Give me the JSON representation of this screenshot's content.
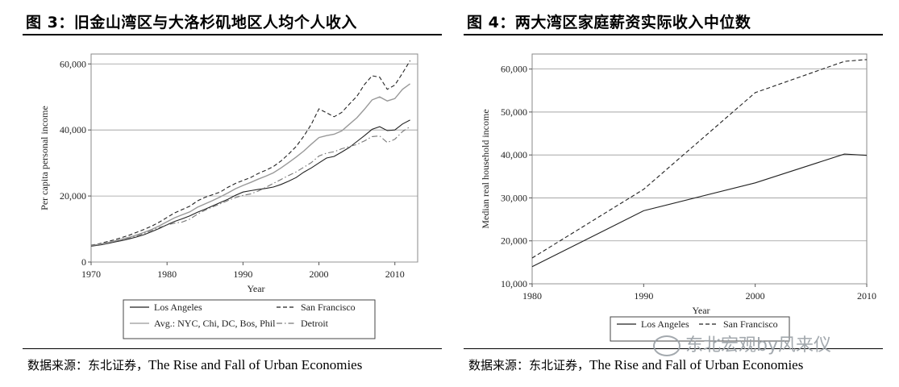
{
  "figures": [
    {
      "title": "图 3：旧金山湾区与大洛杉矶地区人均个人收入",
      "source_prefix": "数据来源：东北证券，",
      "source_en": "The Rise and Fall of Urban Economies"
    },
    {
      "title": "图 4：两大湾区家庭薪资实际收入中位数",
      "source_prefix": "数据来源：东北证券，",
      "source_en": "The Rise and Fall of Urban Economies"
    }
  ],
  "watermark": "东北宏观by风来仪",
  "chart_data": [
    {
      "type": "line",
      "title": "旧金山湾区与大洛杉矶地区人均个人收入",
      "xlabel": "Year",
      "ylabel": "Per capita personal income",
      "xlim": [
        1970,
        2013
      ],
      "ylim": [
        0,
        63000
      ],
      "xticks": [
        1970,
        1980,
        1990,
        2000,
        2010
      ],
      "yticks": [
        0,
        20000,
        40000,
        60000
      ],
      "ytick_labels": [
        "0",
        "20,000",
        "40,000",
        "60,000"
      ],
      "grid": "horizontal",
      "legend_position": "bottom",
      "x": [
        1970,
        1971,
        1972,
        1973,
        1974,
        1975,
        1976,
        1977,
        1978,
        1979,
        1980,
        1981,
        1982,
        1983,
        1984,
        1985,
        1986,
        1987,
        1988,
        1989,
        1990,
        1991,
        1992,
        1993,
        1994,
        1995,
        1996,
        1997,
        1998,
        1999,
        2000,
        2001,
        2002,
        2003,
        2004,
        2005,
        2006,
        2007,
        2008,
        2009,
        2010,
        2011,
        2012
      ],
      "series": [
        {
          "name": "Los Angeles",
          "style": "solid",
          "color": "#222222",
          "values": [
            4800,
            5100,
            5500,
            6000,
            6500,
            7000,
            7600,
            8300,
            9200,
            10200,
            11300,
            12300,
            13100,
            14000,
            15100,
            16000,
            17000,
            18000,
            19000,
            20200,
            21200,
            21600,
            22000,
            22300,
            22700,
            23500,
            24500,
            25600,
            27200,
            28500,
            30000,
            31500,
            32000,
            33300,
            34700,
            36500,
            38300,
            40200,
            41000,
            39800,
            40000,
            41800,
            43000
          ]
        },
        {
          "name": "San Francisco",
          "style": "dashed",
          "color": "#222222",
          "values": [
            5100,
            5500,
            6100,
            6700,
            7400,
            8100,
            9000,
            9900,
            10900,
            12100,
            13500,
            14900,
            15900,
            16900,
            18500,
            19600,
            20400,
            21200,
            22600,
            23800,
            24700,
            25600,
            26800,
            27800,
            28900,
            30600,
            32700,
            35000,
            38100,
            41700,
            46400,
            45200,
            44000,
            45300,
            47800,
            50200,
            53800,
            56400,
            56000,
            52300,
            53600,
            57200,
            61000
          ]
        },
        {
          "name": "Avg.: NYC, Chi, DC, Bos, Phil",
          "style": "solid",
          "color": "#999999",
          "values": [
            5000,
            5300,
            5800,
            6300,
            6900,
            7500,
            8200,
            9000,
            9900,
            11000,
            12200,
            13400,
            14300,
            15200,
            16600,
            17600,
            18600,
            19700,
            20900,
            22200,
            23200,
            24100,
            25100,
            26000,
            27000,
            28500,
            30100,
            31800,
            33600,
            35700,
            37700,
            38300,
            38700,
            39700,
            41700,
            43700,
            46300,
            49100,
            50000,
            48800,
            49500,
            52300,
            54000
          ]
        },
        {
          "name": "Detroit",
          "style": "dashdot",
          "color": "#777777",
          "values": [
            5000,
            5200,
            5600,
            6200,
            6700,
            7200,
            7900,
            8700,
            9600,
            10500,
            11200,
            11800,
            12100,
            13000,
            14500,
            15700,
            16700,
            17600,
            18600,
            19500,
            20200,
            20600,
            21500,
            22600,
            23800,
            25000,
            26200,
            27300,
            28700,
            30100,
            32100,
            33000,
            33400,
            34300,
            35000,
            35600,
            36700,
            38000,
            38200,
            36200,
            37200,
            39500,
            41000
          ]
        }
      ]
    },
    {
      "type": "line",
      "title": "两大湾区家庭薪资实际收入中位数",
      "xlabel": "Year",
      "ylabel": "Median real household income",
      "xlim": [
        1980,
        2010
      ],
      "ylim": [
        10000,
        63500
      ],
      "xticks": [
        1980,
        1990,
        2000,
        2010
      ],
      "yticks": [
        10000,
        20000,
        30000,
        40000,
        50000,
        60000
      ],
      "ytick_labels": [
        "10,000",
        "20,000",
        "30,000",
        "40,000",
        "50,000",
        "60,000"
      ],
      "grid": "horizontal",
      "legend_position": "bottom",
      "x": [
        1980,
        1990,
        2000,
        2008,
        2010
      ],
      "series": [
        {
          "name": "Los Angeles",
          "style": "solid",
          "color": "#222222",
          "values": [
            14000,
            27000,
            33500,
            40200,
            39900
          ]
        },
        {
          "name": "San Francisco",
          "style": "dashed",
          "color": "#222222",
          "values": [
            16000,
            32000,
            54500,
            61800,
            62200
          ]
        }
      ]
    }
  ]
}
